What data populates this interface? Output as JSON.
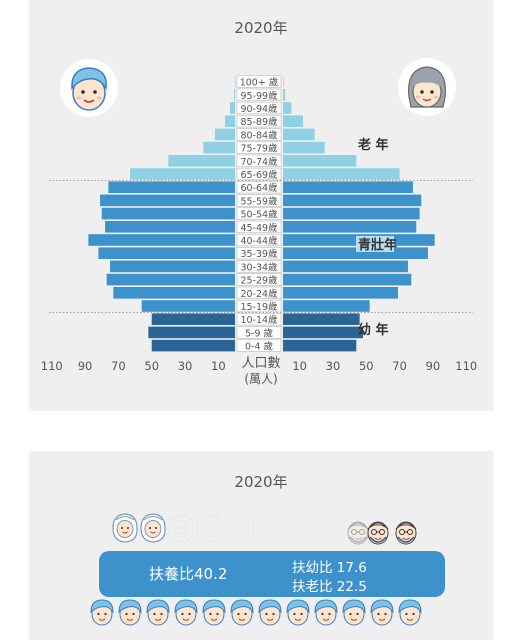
{
  "pyramid": {
    "year": "2020年",
    "axis_label_line1": "人口數",
    "axis_label_line2": "(萬人)",
    "group_labels": {
      "elderly": "老 年",
      "working": "青壯年",
      "young": "幼 年"
    },
    "colors": {
      "elderly": "#8fd0e4",
      "working": "#3d92cc",
      "young": "#2a6596"
    },
    "icons": {
      "left": "boy-face-icon",
      "right": "girl-face-icon"
    }
  },
  "ratio": {
    "year": "2020年",
    "dependency_label": "扶養比40.2",
    "youth_label": "扶幼比 17.6",
    "elderly_label": "扶老比 22.5",
    "bar_color": "#3d92cc",
    "icons": {
      "youth": "baby-face-icon",
      "elderly": "grandparent-face-icon",
      "working": "adult-face-icon"
    }
  },
  "chart_data": {
    "type": "bar",
    "orientation": "horizontal-pyramid",
    "categories": [
      "100+ 歲",
      "95-99歲",
      "90-94歲",
      "85-89歲",
      "80-84歲",
      "75-79歲",
      "70-74歲",
      "65-69歲",
      "60-64歲",
      "55-59歲",
      "50-54歲",
      "45-49歲",
      "40-44歲",
      "35-39歲",
      "30-34歲",
      "25-29歲",
      "20-24歲",
      "15-19歲",
      "10-14歲",
      "5-9 歲",
      "0-4 歲"
    ],
    "series": [
      {
        "values": [
          0.1,
          0.6,
          3,
          6,
          12,
          19,
          40,
          63,
          76,
          81,
          80,
          78,
          88,
          82,
          75,
          77,
          73,
          56,
          50,
          52,
          50
        ]
      },
      {
        "values": [
          0.2,
          1.3,
          5,
          12,
          19,
          25,
          44,
          70,
          78,
          83,
          82,
          80,
          91,
          87,
          75,
          77,
          69,
          52,
          46,
          48,
          44
        ]
      }
    ],
    "x_ticks_left": [
      "110",
      "90",
      "70",
      "50",
      "30",
      "10"
    ],
    "x_ticks_right": [
      "10",
      "30",
      "50",
      "70",
      "90",
      "110"
    ],
    "xlim": [
      -110,
      110
    ],
    "unit": "萬人",
    "grid": false
  }
}
